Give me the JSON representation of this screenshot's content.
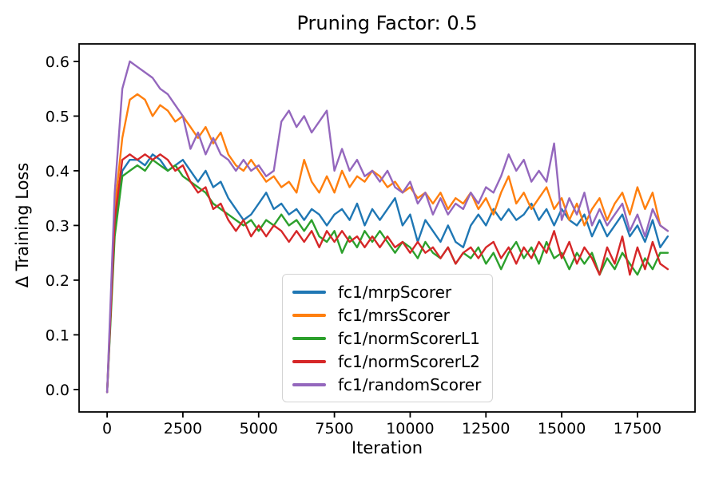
{
  "chart_data": {
    "type": "line",
    "title": "Pruning Factor: 0.5",
    "xlabel": "Iteration",
    "ylabel": "Δ Training Loss",
    "grid": false,
    "legend_loc": "inside lower-center",
    "xlim": [
      -925,
      19400
    ],
    "ylim": [
      -0.041,
      0.632
    ],
    "x_ticks": [
      0,
      2500,
      5000,
      7500,
      10000,
      12500,
      15000,
      17500
    ],
    "y_ticks": [
      0.0,
      0.1,
      0.2,
      0.3,
      0.4,
      0.5,
      0.6
    ],
    "x": [
      0,
      250,
      500,
      750,
      1000,
      1250,
      1500,
      1750,
      2000,
      2250,
      2500,
      2750,
      3000,
      3250,
      3500,
      3750,
      4000,
      4250,
      4500,
      4750,
      5000,
      5250,
      5500,
      5750,
      6000,
      6250,
      6500,
      6750,
      7000,
      7250,
      7500,
      7750,
      8000,
      8250,
      8500,
      8750,
      9000,
      9250,
      9500,
      9750,
      10000,
      10250,
      10500,
      10750,
      11000,
      11250,
      11500,
      11750,
      12000,
      12250,
      12500,
      12750,
      13000,
      13250,
      13500,
      13750,
      14000,
      14250,
      14500,
      14750,
      15000,
      15250,
      15500,
      15750,
      16000,
      16250,
      16500,
      16750,
      17000,
      17250,
      17500,
      17750,
      18000,
      18250,
      18500
    ],
    "series": [
      {
        "name": "fc1/mrpScorer",
        "color": "#1f77b4",
        "values": [
          -0.005,
          0.3,
          0.4,
          0.42,
          0.42,
          0.41,
          0.43,
          0.42,
          0.4,
          0.41,
          0.42,
          0.4,
          0.38,
          0.4,
          0.37,
          0.38,
          0.35,
          0.33,
          0.31,
          0.32,
          0.34,
          0.36,
          0.33,
          0.34,
          0.32,
          0.33,
          0.31,
          0.33,
          0.32,
          0.3,
          0.32,
          0.33,
          0.31,
          0.34,
          0.3,
          0.33,
          0.31,
          0.33,
          0.35,
          0.3,
          0.32,
          0.27,
          0.31,
          0.29,
          0.27,
          0.3,
          0.27,
          0.26,
          0.3,
          0.32,
          0.3,
          0.33,
          0.31,
          0.33,
          0.31,
          0.32,
          0.34,
          0.31,
          0.33,
          0.3,
          0.33,
          0.31,
          0.3,
          0.32,
          0.28,
          0.31,
          0.28,
          0.3,
          0.32,
          0.28,
          0.3,
          0.27,
          0.31,
          0.26,
          0.28
        ]
      },
      {
        "name": "fc1/mrsScorer",
        "color": "#ff7f0e",
        "values": [
          -0.005,
          0.33,
          0.46,
          0.53,
          0.54,
          0.53,
          0.5,
          0.52,
          0.51,
          0.49,
          0.5,
          0.48,
          0.46,
          0.48,
          0.45,
          0.47,
          0.43,
          0.41,
          0.4,
          0.42,
          0.4,
          0.38,
          0.39,
          0.37,
          0.38,
          0.36,
          0.42,
          0.38,
          0.36,
          0.39,
          0.36,
          0.4,
          0.37,
          0.39,
          0.38,
          0.4,
          0.39,
          0.37,
          0.38,
          0.36,
          0.37,
          0.35,
          0.36,
          0.34,
          0.36,
          0.33,
          0.35,
          0.34,
          0.36,
          0.33,
          0.35,
          0.32,
          0.36,
          0.39,
          0.34,
          0.36,
          0.33,
          0.35,
          0.37,
          0.33,
          0.35,
          0.31,
          0.34,
          0.3,
          0.33,
          0.35,
          0.31,
          0.34,
          0.36,
          0.32,
          0.37,
          0.33,
          0.36,
          0.3,
          0.29
        ]
      },
      {
        "name": "fc1/normScorerL1",
        "color": "#2ca02c",
        "values": [
          -0.005,
          0.28,
          0.39,
          0.4,
          0.41,
          0.4,
          0.42,
          0.41,
          0.4,
          0.41,
          0.39,
          0.38,
          0.37,
          0.36,
          0.34,
          0.33,
          0.32,
          0.31,
          0.3,
          0.31,
          0.29,
          0.31,
          0.3,
          0.32,
          0.3,
          0.31,
          0.29,
          0.31,
          0.28,
          0.27,
          0.29,
          0.25,
          0.28,
          0.26,
          0.29,
          0.27,
          0.29,
          0.27,
          0.25,
          0.27,
          0.26,
          0.24,
          0.27,
          0.25,
          0.24,
          0.26,
          0.23,
          0.25,
          0.24,
          0.26,
          0.23,
          0.25,
          0.22,
          0.25,
          0.27,
          0.24,
          0.26,
          0.23,
          0.27,
          0.24,
          0.25,
          0.22,
          0.25,
          0.23,
          0.25,
          0.21,
          0.24,
          0.22,
          0.25,
          0.23,
          0.21,
          0.24,
          0.22,
          0.25,
          0.25
        ]
      },
      {
        "name": "fc1/normScorerL2",
        "color": "#d62728",
        "values": [
          -0.005,
          0.31,
          0.42,
          0.43,
          0.42,
          0.43,
          0.42,
          0.43,
          0.42,
          0.4,
          0.41,
          0.38,
          0.36,
          0.37,
          0.33,
          0.34,
          0.31,
          0.29,
          0.31,
          0.28,
          0.3,
          0.28,
          0.3,
          0.29,
          0.27,
          0.29,
          0.27,
          0.29,
          0.26,
          0.29,
          0.27,
          0.29,
          0.27,
          0.28,
          0.26,
          0.28,
          0.26,
          0.28,
          0.26,
          0.27,
          0.25,
          0.27,
          0.25,
          0.26,
          0.24,
          0.26,
          0.23,
          0.25,
          0.26,
          0.24,
          0.26,
          0.27,
          0.24,
          0.26,
          0.23,
          0.26,
          0.24,
          0.27,
          0.25,
          0.29,
          0.24,
          0.27,
          0.23,
          0.26,
          0.24,
          0.21,
          0.26,
          0.23,
          0.28,
          0.21,
          0.26,
          0.22,
          0.27,
          0.23,
          0.22
        ]
      },
      {
        "name": "fc1/randomScorer",
        "color": "#9467bd",
        "values": [
          -0.005,
          0.36,
          0.55,
          0.6,
          0.59,
          0.58,
          0.57,
          0.55,
          0.54,
          0.52,
          0.5,
          0.44,
          0.47,
          0.43,
          0.46,
          0.43,
          0.42,
          0.4,
          0.42,
          0.4,
          0.41,
          0.39,
          0.4,
          0.49,
          0.51,
          0.48,
          0.5,
          0.47,
          0.49,
          0.51,
          0.4,
          0.44,
          0.4,
          0.42,
          0.39,
          0.4,
          0.38,
          0.4,
          0.37,
          0.36,
          0.38,
          0.34,
          0.36,
          0.32,
          0.35,
          0.32,
          0.34,
          0.33,
          0.36,
          0.34,
          0.37,
          0.36,
          0.39,
          0.43,
          0.4,
          0.42,
          0.38,
          0.4,
          0.38,
          0.45,
          0.31,
          0.35,
          0.32,
          0.36,
          0.3,
          0.33,
          0.3,
          0.32,
          0.34,
          0.29,
          0.32,
          0.28,
          0.33,
          0.3,
          0.29
        ]
      }
    ]
  }
}
